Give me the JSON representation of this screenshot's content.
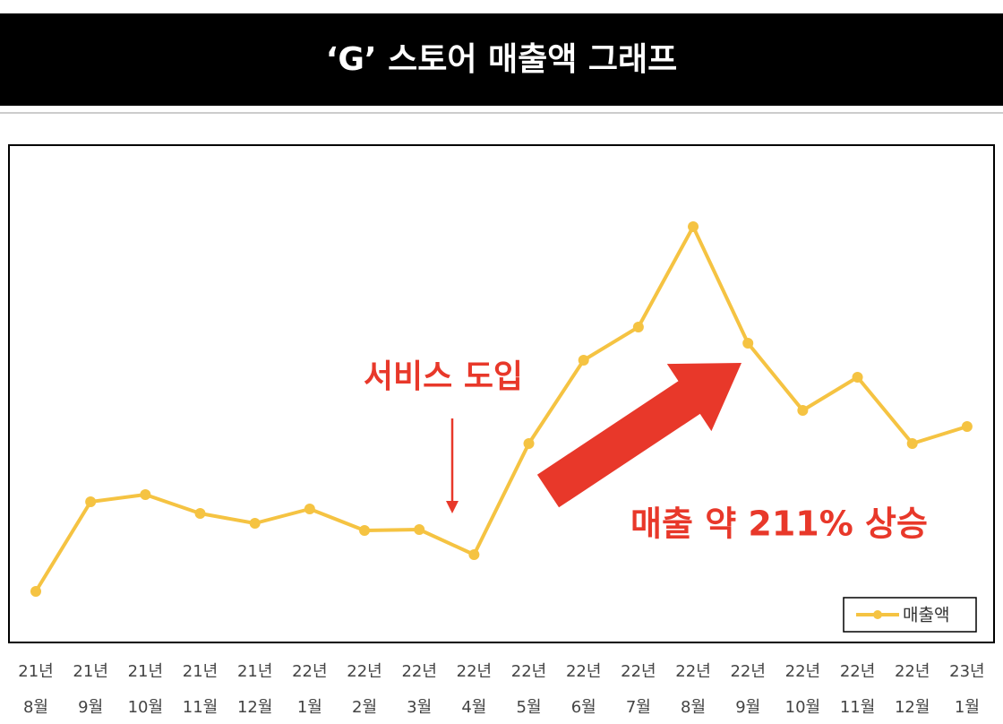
{
  "header": {
    "title": "‘G’ 스토어 매출액 그래프"
  },
  "chart_data": {
    "type": "line",
    "categories": [
      [
        "21년",
        "8월"
      ],
      [
        "21년",
        "9월"
      ],
      [
        "21년",
        "10월"
      ],
      [
        "21년",
        "11월"
      ],
      [
        "21년",
        "12월"
      ],
      [
        "22년",
        "1월"
      ],
      [
        "22년",
        "2월"
      ],
      [
        "22년",
        "3월"
      ],
      [
        "22년",
        "4월"
      ],
      [
        "22년",
        "5월"
      ],
      [
        "22년",
        "6월"
      ],
      [
        "22년",
        "7월"
      ],
      [
        "22년",
        "8월"
      ],
      [
        "22년",
        "9월"
      ],
      [
        "22년",
        "10월"
      ],
      [
        "22년",
        "11월"
      ],
      [
        "22년",
        "12월"
      ],
      [
        "23년",
        "1월"
      ]
    ],
    "series": [
      {
        "name": "매출액",
        "color": "#f5c342",
        "values": [
          57,
          157,
          165,
          144,
          133,
          149,
          125,
          126,
          98,
          222,
          315,
          352,
          464,
          334,
          259,
          296,
          222,
          241
        ]
      }
    ],
    "ylim": [
      0,
      555
    ],
    "annotations": [
      "서비스 도입",
      "매출 약 211% 상승"
    ],
    "legend": "bottom-right"
  }
}
